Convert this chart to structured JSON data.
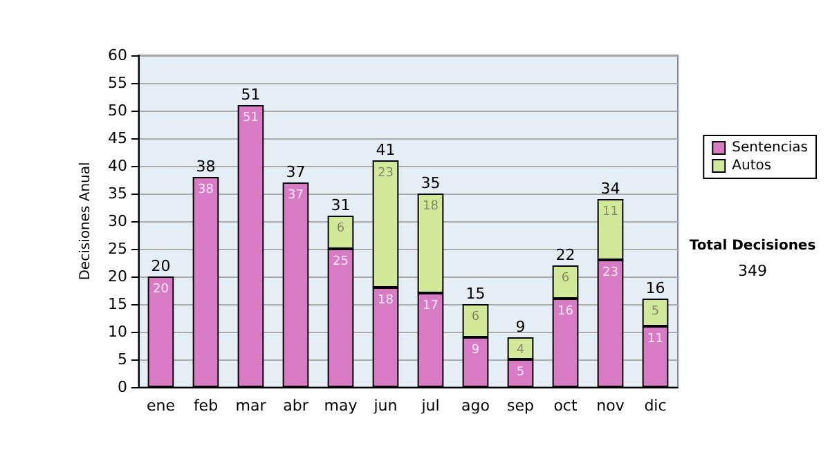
{
  "chart_data": {
    "type": "bar",
    "stacked": true,
    "ylabel": "Decisiones Anual",
    "categories": [
      "ene",
      "feb",
      "mar",
      "abr",
      "may",
      "jun",
      "jul",
      "ago",
      "sep",
      "oct",
      "nov",
      "dic"
    ],
    "series": [
      {
        "name": "Sentencias",
        "color": "#d87bc4",
        "values": [
          20,
          38,
          51,
          37,
          25,
          18,
          17,
          9,
          5,
          16,
          23,
          11
        ]
      },
      {
        "name": "Autos",
        "color": "#d3e99a",
        "values": [
          null,
          null,
          null,
          null,
          6,
          23,
          18,
          6,
          4,
          6,
          11,
          5
        ]
      }
    ],
    "totals": [
      "20",
      "38",
      "51",
      "37",
      "31",
      "41",
      "35",
      "15",
      "9",
      "22",
      "34",
      "16"
    ],
    "data_labels": true,
    "ylim": [
      0,
      60
    ],
    "yticks": [
      0,
      5,
      10,
      15,
      20,
      25,
      30,
      35,
      40,
      45,
      50,
      55,
      60
    ],
    "grid": "y",
    "legend": "right",
    "annotations": [
      "Total Decisiones",
      "349"
    ]
  }
}
